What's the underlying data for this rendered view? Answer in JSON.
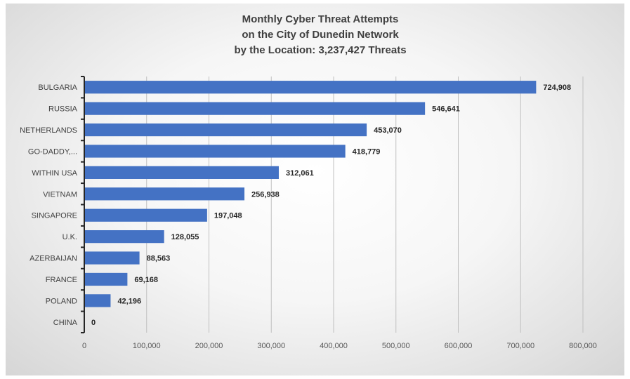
{
  "chart_data": {
    "type": "bar",
    "orientation": "horizontal",
    "title_lines": [
      "Monthly Cyber Threat Attempts",
      "on the City of Dunedin Network",
      "by the Location: 3,237,427 Threats"
    ],
    "categories": [
      "BULGARIA",
      "RUSSIA",
      "NETHERLANDS",
      "GO-DADDY,...",
      "WITHIN USA",
      "VIETNAM",
      "SINGAPORE",
      "U.K.",
      "AZERBAIJAN",
      "FRANCE",
      "POLAND",
      "CHINA"
    ],
    "values": [
      724908,
      546641,
      453070,
      418779,
      312061,
      256938,
      197048,
      128055,
      88563,
      69168,
      42196,
      0
    ],
    "value_labels": [
      "724,908",
      "546,641",
      "453,070",
      "418,779",
      "312,061",
      "256,938",
      "197,048",
      "128,055",
      "88,563",
      "69,168",
      "42,196",
      "0"
    ],
    "xlim": [
      0,
      800000
    ],
    "xticks": [
      0,
      100000,
      200000,
      300000,
      400000,
      500000,
      600000,
      700000,
      800000
    ],
    "xtick_labels": [
      "0",
      "100,000",
      "200,000",
      "300,000",
      "400,000",
      "500,000",
      "600,000",
      "700,000",
      "800,000"
    ],
    "xlabel": "",
    "ylabel": "",
    "grid": "vertical",
    "legend": "none",
    "bar_color": "#4472c4"
  }
}
